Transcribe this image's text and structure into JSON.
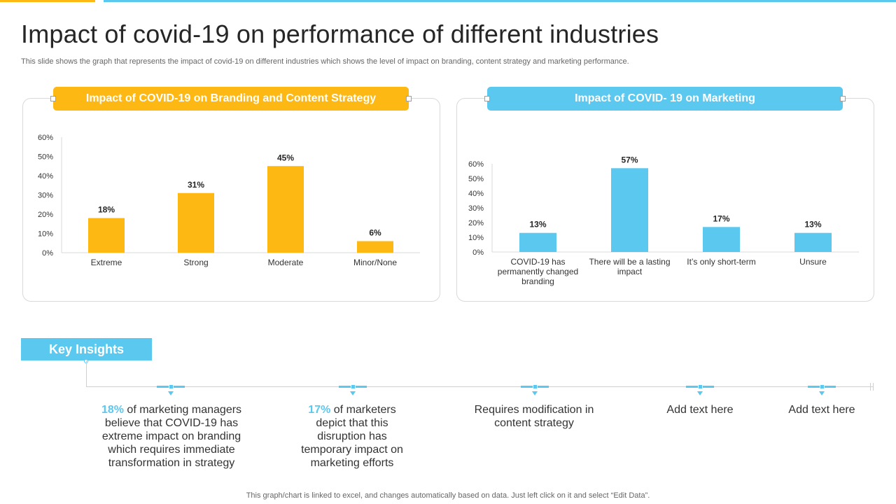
{
  "page": {
    "title": "Impact of covid-19 on performance of different industries",
    "subtitle": "This slide shows the graph that represents the impact of covid-19 on different industries which shows the level of impact on branding, content strategy and marketing performance.",
    "footer": "This graph/chart is linked to excel,  and changes automatically based on data. Just left click on it and select “Edit Data”."
  },
  "colors": {
    "accent_orange": "#FDB813",
    "accent_blue": "#5BC8F0"
  },
  "chart_data": [
    {
      "type": "bar",
      "title": "Impact of COVID-19  on Branding and Content Strategy",
      "categories": [
        "Extreme",
        "Strong",
        "Moderate",
        "Minor/None"
      ],
      "values": [
        18,
        31,
        45,
        6
      ],
      "data_labels": [
        "18%",
        "31%",
        "45%",
        "6%"
      ],
      "ylim": [
        0,
        60
      ],
      "yticks": [
        "0%",
        "10%",
        "20%",
        "30%",
        "40%",
        "50%",
        "60%"
      ],
      "xlabel": "",
      "ylabel": "",
      "color": "#FDB813"
    },
    {
      "type": "bar",
      "title": "Impact of COVID- 19 on Marketing",
      "categories": [
        [
          "COVID-19 has",
          "permanently changed",
          "branding"
        ],
        [
          "There will be a lasting",
          "impact"
        ],
        [
          "It’s only short-term"
        ],
        [
          "Unsure"
        ]
      ],
      "values": [
        13,
        57,
        17,
        13
      ],
      "data_labels": [
        "13%",
        "57%",
        "17%",
        "13%"
      ],
      "ylim": [
        0,
        60
      ],
      "yticks": [
        "0%",
        "10%",
        "20%",
        "30%",
        "40%",
        "50%",
        "60%"
      ],
      "xlabel": "",
      "ylabel": "",
      "color": "#5BC8F0"
    }
  ],
  "insights": {
    "label": "Key Insights",
    "items": [
      {
        "highlight": "18%",
        "text": " of marketing managers believe that COVID-19 has extreme impact on branding which requires immediate transformation in strategy"
      },
      {
        "highlight": "17%",
        "text": " of marketers depict that this disruption has temporary impact on marketing efforts"
      },
      {
        "highlight": "",
        "text": "Requires modification in content strategy"
      },
      {
        "highlight": "",
        "text": "Add text here"
      },
      {
        "highlight": "",
        "text": "Add text here"
      }
    ]
  }
}
